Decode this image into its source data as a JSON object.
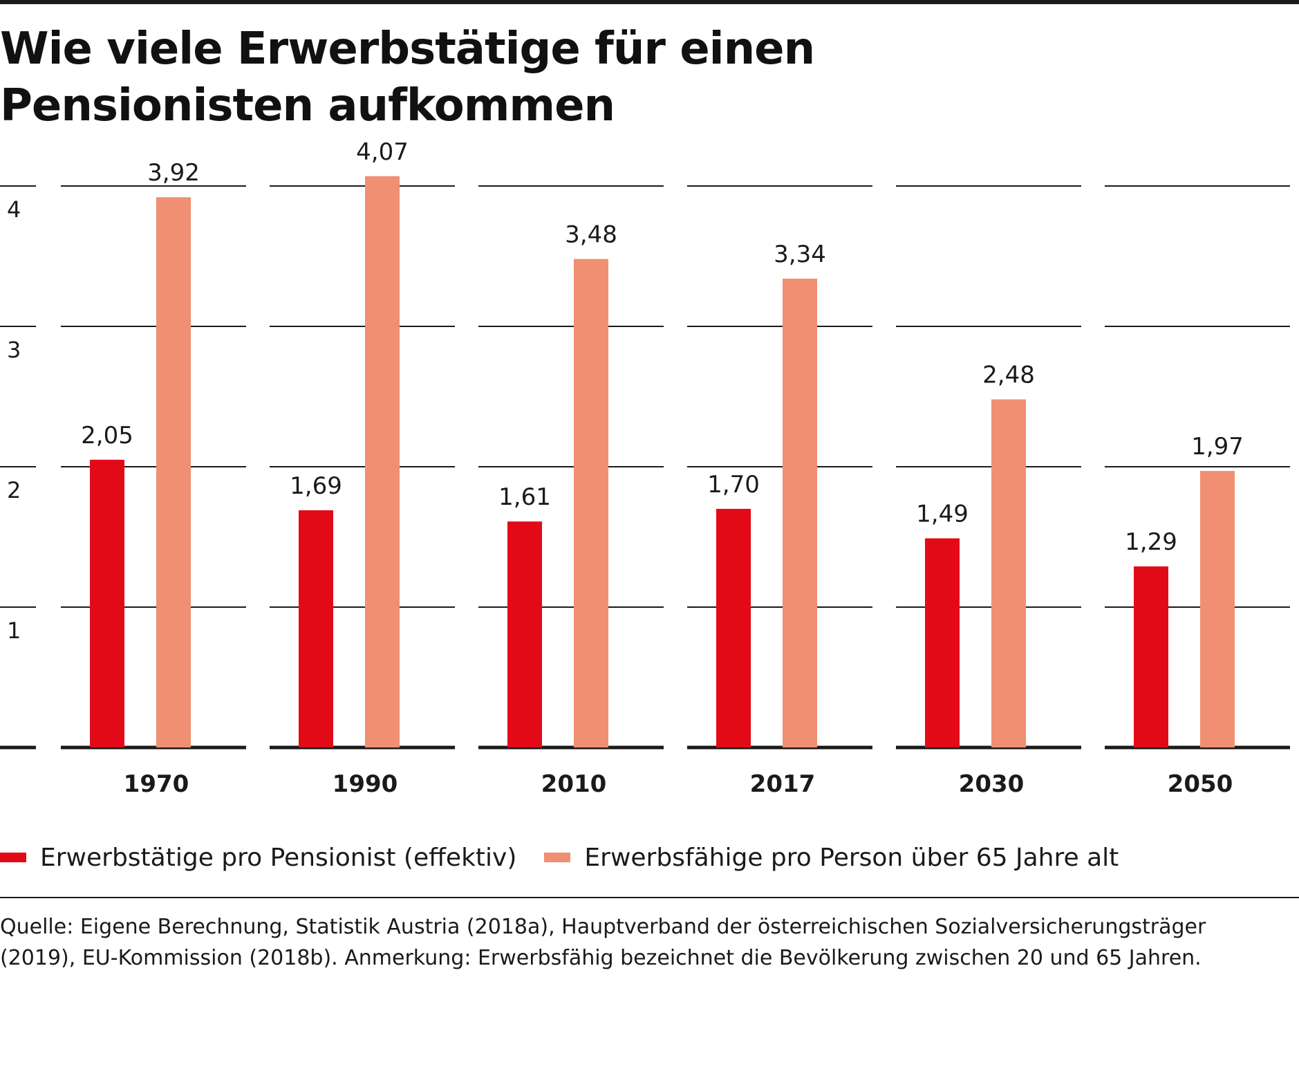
{
  "title_lines": [
    "Wie viele Erwerbstätige für einen",
    "Pensionisten aufkommen"
  ],
  "legend": [
    {
      "label": "Erwerbstätige pro Pensionist (effektiv)",
      "color": "#e30a18"
    },
    {
      "label": "Erwerbsfähige pro Person über 65 Jahre alt",
      "color": "#f08f72"
    }
  ],
  "source_lines": [
    "Quelle: Eigene Berechnung, Statistik Austria (2018a), Hauptverband der österreichischen Sozialversicherungsträger",
    "(2019), EU-Kommission (2018b). Anmerkung: Erwerbsfähig bezeichnet die Bevölkerung zwischen 20 und 65 Jahren."
  ],
  "chart_data": {
    "type": "bar",
    "categories": [
      "1970",
      "1990",
      "2010",
      "2017",
      "2030",
      "2050"
    ],
    "series": [
      {
        "name": "Erwerbstätige pro Pensionist (effektiv)",
        "color": "#e30a18",
        "values": [
          2.05,
          1.69,
          1.61,
          1.7,
          1.49,
          1.29
        ],
        "labels": [
          "2,05",
          "1,69",
          "1,61",
          "1,70",
          "1,49",
          "1,29"
        ]
      },
      {
        "name": "Erwerbsfähige pro Person über 65 Jahre alt",
        "color": "#f08f72",
        "values": [
          3.92,
          4.07,
          3.48,
          3.34,
          2.48,
          1.97
        ],
        "labels": [
          "3,92",
          "4,07",
          "3,48",
          "3,34",
          "2,48",
          "1,97"
        ]
      }
    ],
    "yticks": [
      1,
      2,
      3,
      4
    ],
    "ytick_labels": [
      "1",
      "2",
      "3",
      "4"
    ],
    "ylim": [
      0,
      4
    ],
    "grid": true,
    "legend_position": "bottom"
  }
}
